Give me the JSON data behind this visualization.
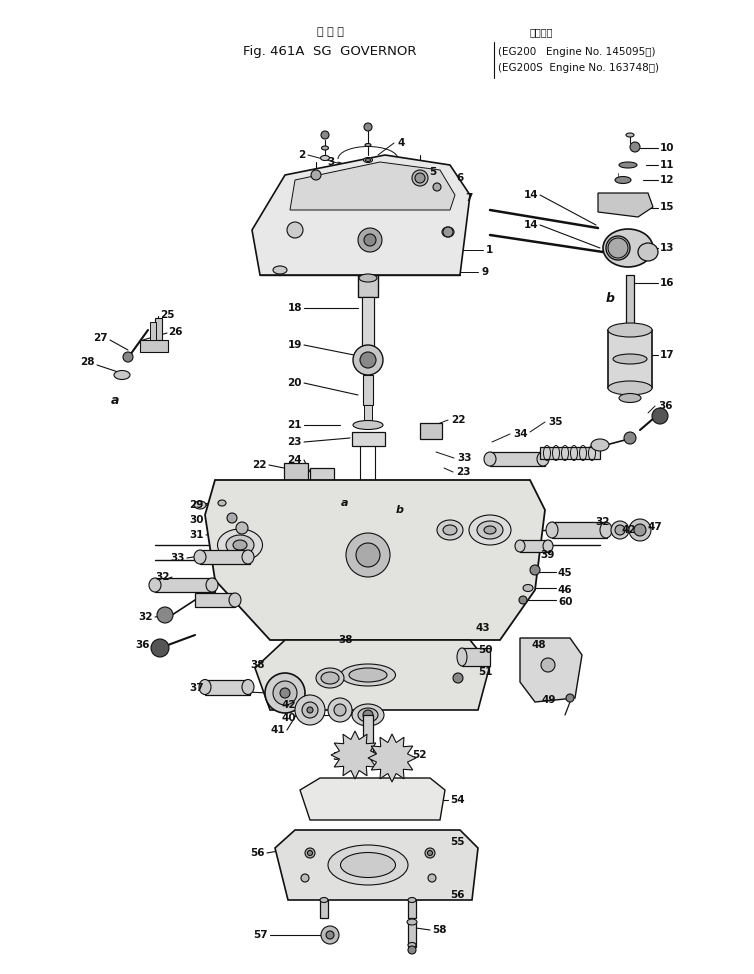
{
  "bg_color": "#ffffff",
  "line_color": "#111111",
  "text_color": "#111111",
  "figsize": [
    7.54,
    9.74
  ],
  "dpi": 100,
  "title_jp": "ガ バ ナ",
  "title_main": "Fig. 461A  SG  GOVERNOR",
  "title_applicable": "適用号第",
  "title_eg200": "(EG200   Engine No. 145095～)",
  "title_eg200s": "(EG200S  Engine No. 163748～)"
}
